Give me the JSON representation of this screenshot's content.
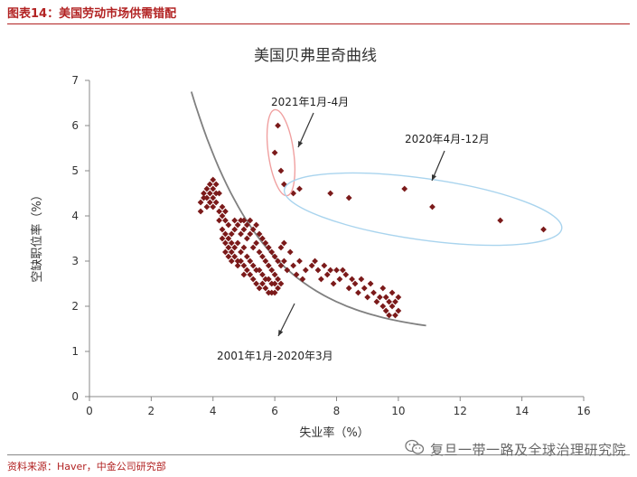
{
  "figure_label": "图表14：美国劳动市场供需错配",
  "source": "资料来源：Haver，中金公司研究部",
  "watermark": "复旦一带一路及全球治理研究院",
  "icon": "wechat-icon",
  "colors": {
    "accent": "#b22222",
    "points": "#7b1a1a",
    "curve": "#808080",
    "ellipse_red": "#f0a0a0",
    "ellipse_blue": "#a9d4ee"
  },
  "chart_data": {
    "type": "scatter",
    "title": "美国贝弗里奇曲线",
    "xlabel": "失业率（%）",
    "ylabel": "空缺职位率（%）",
    "xlim": [
      0,
      16
    ],
    "ylim": [
      0,
      7
    ],
    "xticks": [
      "0",
      "2",
      "4",
      "6",
      "8",
      "10",
      "12",
      "14",
      "16"
    ],
    "yticks": [
      "0",
      "1",
      "2",
      "3",
      "4",
      "5",
      "6",
      "7"
    ],
    "grid": false,
    "annotations": [
      {
        "label": "2021年1月-4月"
      },
      {
        "label": "2020年4月-12月"
      },
      {
        "label": "2001年1月-2020年3月"
      }
    ],
    "series": [
      {
        "points": [
          [
            3.6,
            4.1
          ],
          [
            3.6,
            4.3
          ],
          [
            3.7,
            4.4
          ],
          [
            3.7,
            4.5
          ],
          [
            3.8,
            4.6
          ],
          [
            3.8,
            4.4
          ],
          [
            3.8,
            4.2
          ],
          [
            3.9,
            4.7
          ],
          [
            3.9,
            4.5
          ],
          [
            3.9,
            4.3
          ],
          [
            4.0,
            4.8
          ],
          [
            4.0,
            4.6
          ],
          [
            4.0,
            4.4
          ],
          [
            4.0,
            4.2
          ],
          [
            4.1,
            4.7
          ],
          [
            4.1,
            4.5
          ],
          [
            4.1,
            4.3
          ],
          [
            4.2,
            4.5
          ],
          [
            4.2,
            4.1
          ],
          [
            4.2,
            3.9
          ],
          [
            4.3,
            4.2
          ],
          [
            4.3,
            4.0
          ],
          [
            4.3,
            3.7
          ],
          [
            4.3,
            3.5
          ],
          [
            4.4,
            4.1
          ],
          [
            4.4,
            3.9
          ],
          [
            4.4,
            3.6
          ],
          [
            4.4,
            3.4
          ],
          [
            4.4,
            3.2
          ],
          [
            4.5,
            3.8
          ],
          [
            4.5,
            3.5
          ],
          [
            4.5,
            3.3
          ],
          [
            4.5,
            3.1
          ],
          [
            4.6,
            3.6
          ],
          [
            4.6,
            3.4
          ],
          [
            4.6,
            3.2
          ],
          [
            4.6,
            3.0
          ],
          [
            4.7,
            3.9
          ],
          [
            4.7,
            3.7
          ],
          [
            4.7,
            3.3
          ],
          [
            4.7,
            3.1
          ],
          [
            4.8,
            3.8
          ],
          [
            4.8,
            3.4
          ],
          [
            4.8,
            3.0
          ],
          [
            4.8,
            2.9
          ],
          [
            4.9,
            3.9
          ],
          [
            4.9,
            3.6
          ],
          [
            4.9,
            3.2
          ],
          [
            4.9,
            3.0
          ],
          [
            5.0,
            3.9
          ],
          [
            5.0,
            3.7
          ],
          [
            5.0,
            3.3
          ],
          [
            5.0,
            2.9
          ],
          [
            5.0,
            2.7
          ],
          [
            5.1,
            3.8
          ],
          [
            5.1,
            3.5
          ],
          [
            5.1,
            3.1
          ],
          [
            5.1,
            2.8
          ],
          [
            5.2,
            3.9
          ],
          [
            5.2,
            3.6
          ],
          [
            5.2,
            3.0
          ],
          [
            5.2,
            2.7
          ],
          [
            5.3,
            3.7
          ],
          [
            5.3,
            3.3
          ],
          [
            5.3,
            2.9
          ],
          [
            5.3,
            2.6
          ],
          [
            5.4,
            3.8
          ],
          [
            5.4,
            3.4
          ],
          [
            5.4,
            2.8
          ],
          [
            5.4,
            2.5
          ],
          [
            5.5,
            3.6
          ],
          [
            5.5,
            3.2
          ],
          [
            5.5,
            2.8
          ],
          [
            5.5,
            2.4
          ],
          [
            5.6,
            3.5
          ],
          [
            5.6,
            3.1
          ],
          [
            5.6,
            2.7
          ],
          [
            5.6,
            2.5
          ],
          [
            5.7,
            3.4
          ],
          [
            5.7,
            3.0
          ],
          [
            5.7,
            2.6
          ],
          [
            5.7,
            2.4
          ],
          [
            5.8,
            3.3
          ],
          [
            5.8,
            2.9
          ],
          [
            5.8,
            2.6
          ],
          [
            5.8,
            2.3
          ],
          [
            5.9,
            3.2
          ],
          [
            5.9,
            2.8
          ],
          [
            5.9,
            2.5
          ],
          [
            5.9,
            2.3
          ],
          [
            6.0,
            3.1
          ],
          [
            6.0,
            2.7
          ],
          [
            6.0,
            2.5
          ],
          [
            6.0,
            2.3
          ],
          [
            6.1,
            3.0
          ],
          [
            6.1,
            2.6
          ],
          [
            6.1,
            2.4
          ],
          [
            6.2,
            3.3
          ],
          [
            6.2,
            2.9
          ],
          [
            6.2,
            2.5
          ],
          [
            6.3,
            3.4
          ],
          [
            6.3,
            3.0
          ],
          [
            6.4,
            2.8
          ],
          [
            6.5,
            3.2
          ],
          [
            6.6,
            2.9
          ],
          [
            6.7,
            2.7
          ],
          [
            6.8,
            3.0
          ],
          [
            6.9,
            2.6
          ],
          [
            7.0,
            2.8
          ],
          [
            7.2,
            2.9
          ],
          [
            7.3,
            3.0
          ],
          [
            7.4,
            2.8
          ],
          [
            7.5,
            2.6
          ],
          [
            7.6,
            2.9
          ],
          [
            7.7,
            2.7
          ],
          [
            7.8,
            2.8
          ],
          [
            7.9,
            2.5
          ],
          [
            8.0,
            2.8
          ],
          [
            8.1,
            2.6
          ],
          [
            8.2,
            2.8
          ],
          [
            8.3,
            2.7
          ],
          [
            8.4,
            2.4
          ],
          [
            8.5,
            2.6
          ],
          [
            8.6,
            2.5
          ],
          [
            8.7,
            2.3
          ],
          [
            8.8,
            2.6
          ],
          [
            8.9,
            2.4
          ],
          [
            9.0,
            2.2
          ],
          [
            9.1,
            2.5
          ],
          [
            9.2,
            2.3
          ],
          [
            9.3,
            2.1
          ],
          [
            9.4,
            2.2
          ],
          [
            9.5,
            2.0
          ],
          [
            9.5,
            2.4
          ],
          [
            9.6,
            1.9
          ],
          [
            9.6,
            2.2
          ],
          [
            9.7,
            1.8
          ],
          [
            9.7,
            2.1
          ],
          [
            9.8,
            2.0
          ],
          [
            9.8,
            2.3
          ],
          [
            9.9,
            1.8
          ],
          [
            9.9,
            2.1
          ],
          [
            10.0,
            1.9
          ],
          [
            10.0,
            2.2
          ]
        ]
      },
      {
        "points": [
          [
            6.0,
            5.4
          ],
          [
            6.1,
            6.0
          ],
          [
            6.2,
            5.0
          ],
          [
            6.3,
            4.7
          ]
        ]
      },
      {
        "points": [
          [
            6.6,
            4.5
          ],
          [
            6.8,
            4.6
          ],
          [
            7.8,
            4.5
          ],
          [
            8.4,
            4.4
          ],
          [
            10.2,
            4.6
          ],
          [
            11.1,
            4.2
          ],
          [
            13.3,
            3.9
          ],
          [
            14.7,
            3.7
          ]
        ]
      }
    ]
  }
}
